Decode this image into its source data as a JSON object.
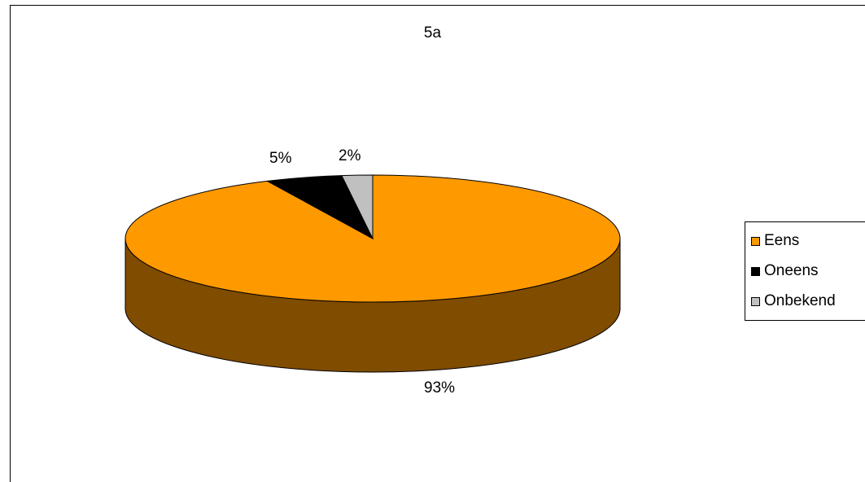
{
  "chart_data": {
    "type": "pie",
    "title": "5a",
    "categories": [
      "Eens",
      "Oneens",
      "Onbekend"
    ],
    "values": [
      93,
      5,
      2
    ],
    "data_labels": [
      "93%",
      "5%",
      "2%"
    ],
    "colors": [
      "#FF9900",
      "#000000",
      "#C0C0C0"
    ],
    "side_colors": [
      "#7F4C00",
      "#000000",
      "#606060"
    ],
    "legend_position": "right",
    "style": "3d"
  }
}
